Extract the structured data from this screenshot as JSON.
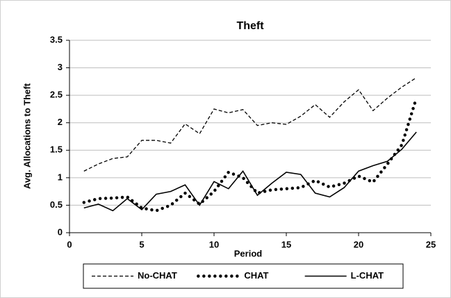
{
  "chart_data": {
    "type": "line",
    "title": "Theft",
    "x_label": "Period",
    "y_label": "Avg. Allocations to Theft",
    "x": [
      1,
      2,
      3,
      4,
      5,
      6,
      7,
      8,
      9,
      10,
      11,
      12,
      13,
      14,
      15,
      16,
      17,
      18,
      19,
      20,
      21,
      22,
      23,
      24
    ],
    "series": [
      {
        "name": "No-CHAT",
        "color": "#000000",
        "style": "dashed",
        "values": [
          1.12,
          1.25,
          1.35,
          1.38,
          1.68,
          1.68,
          1.63,
          1.98,
          1.8,
          2.25,
          2.18,
          2.24,
          1.95,
          2.0,
          1.97,
          2.12,
          2.33,
          2.1,
          2.38,
          2.6,
          2.22,
          2.45,
          2.65,
          2.82
        ]
      },
      {
        "name": "CHAT",
        "color": "#000000",
        "style": "dotted",
        "values": [
          0.55,
          0.62,
          0.63,
          0.65,
          0.45,
          0.4,
          0.5,
          0.72,
          0.52,
          0.75,
          1.1,
          1.0,
          0.72,
          0.78,
          0.8,
          0.82,
          0.95,
          0.83,
          0.9,
          1.03,
          0.92,
          1.25,
          1.6,
          2.45
        ]
      },
      {
        "name": "L-CHAT",
        "color": "#000000",
        "style": "solid",
        "values": [
          0.45,
          0.52,
          0.4,
          0.62,
          0.42,
          0.7,
          0.75,
          0.87,
          0.5,
          0.93,
          0.8,
          1.12,
          0.68,
          0.9,
          1.1,
          1.06,
          0.72,
          0.65,
          0.82,
          1.12,
          1.22,
          1.3,
          1.52,
          1.83
        ]
      }
    ],
    "xlim": [
      0,
      25
    ],
    "xticks": [
      0,
      5,
      10,
      15,
      20,
      25
    ],
    "ylim": [
      0,
      3.5
    ],
    "yticks": [
      0,
      0.5,
      1,
      1.5,
      2,
      2.5,
      3,
      3.5
    ],
    "grid": true,
    "legend": "bottom"
  }
}
